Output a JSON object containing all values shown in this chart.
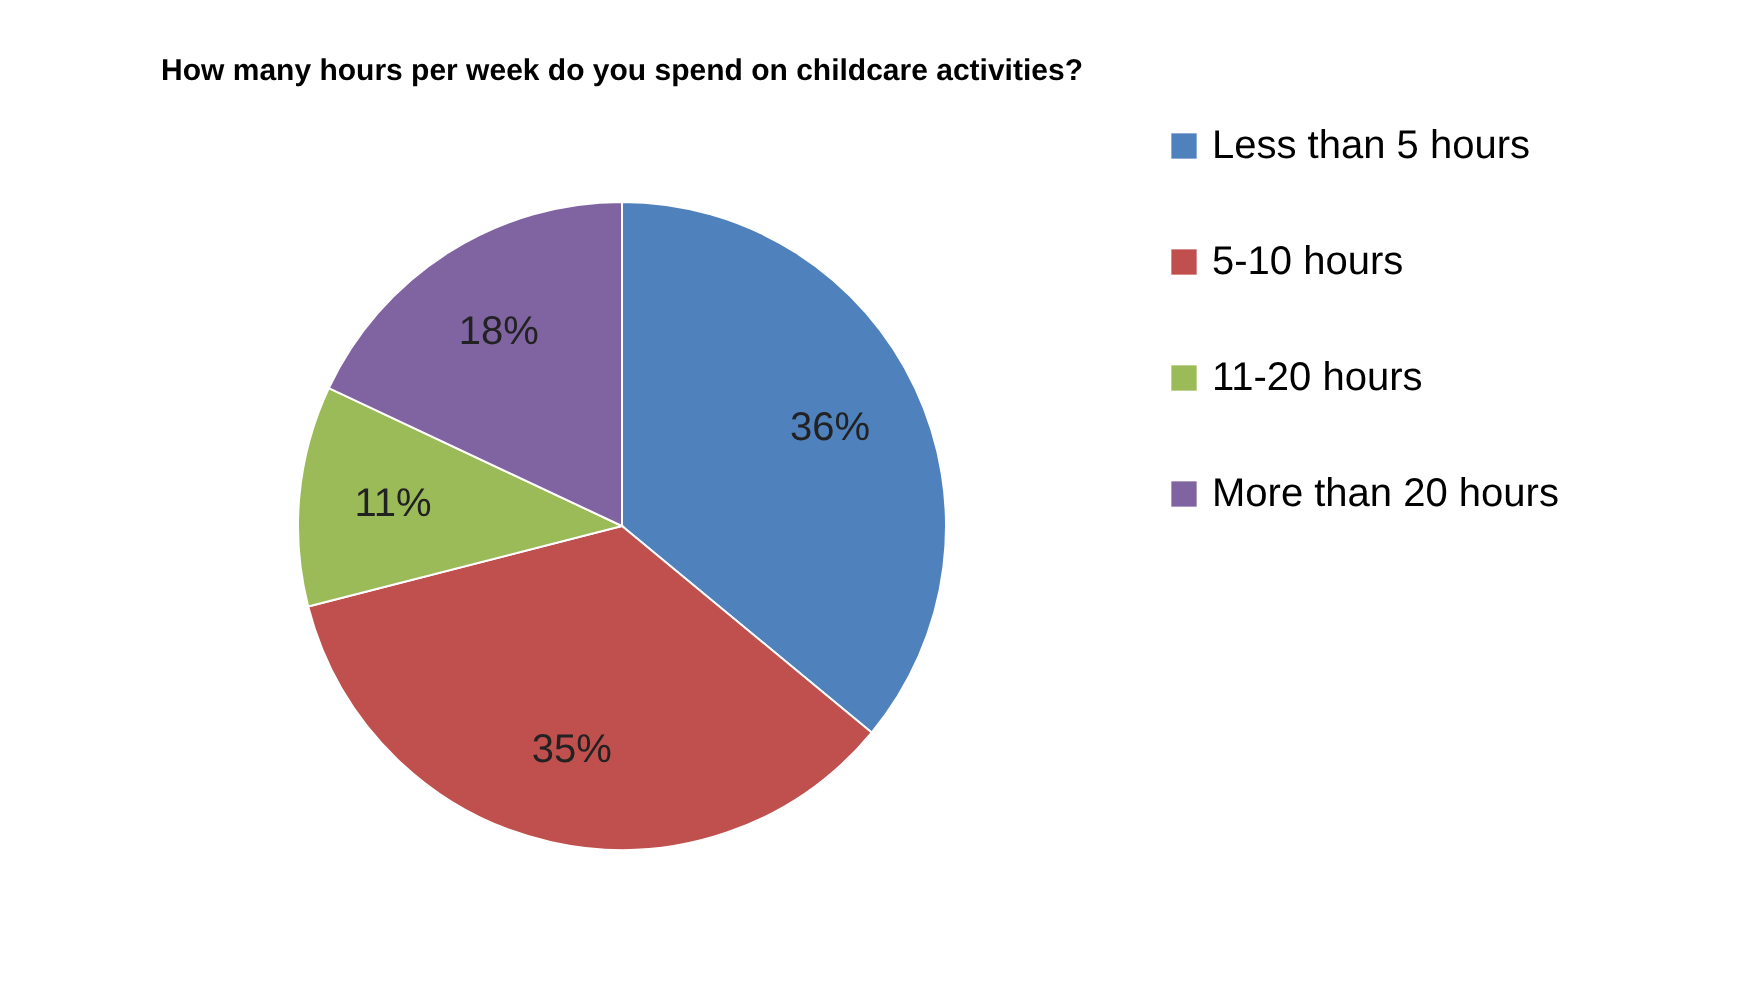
{
  "chart_data": {
    "type": "pie",
    "title": "How many hours per week do you spend on childcare activities?",
    "categories": [
      "Less than 5 hours",
      "5-10 hours",
      "11-20 hours",
      "More than 20 hours"
    ],
    "values": [
      36,
      35,
      11,
      18
    ],
    "value_labels": [
      "36%",
      "35%",
      "11%",
      "18%"
    ],
    "colors": [
      "#4f81bd",
      "#c0504d",
      "#9bbb59",
      "#8064a2"
    ],
    "legend": "right"
  }
}
